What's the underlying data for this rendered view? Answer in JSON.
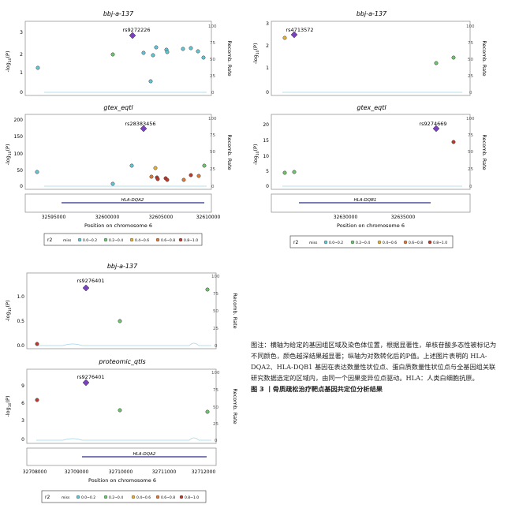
{
  "figure": {
    "colors": {
      "purple": "#7b3fbf",
      "r2_00": "#5fc8d8",
      "r2_02": "#6cc66c",
      "r2_04": "#e8b030",
      "r2_06": "#e07a34",
      "r2_08": "#c0392b",
      "recomb": "#9fd6e8",
      "gene": "#2b2b8c"
    },
    "legend": {
      "title": "r2",
      "items": [
        "miss",
        "0.0~0.2",
        "0.2~0.4",
        "0.4~0.6",
        "0.6~0.8",
        "0.8~1.0"
      ]
    },
    "recomb_label": "Recomb. Rate",
    "xaxis_label": "Position on chromosome 6",
    "panels": {
      "a": {
        "top_title": "bbj-a-137",
        "top_snp": "rs9272226",
        "top_yticks": [
          "3",
          "2",
          "1",
          "0"
        ],
        "top_rticks": [
          "100",
          "75",
          "50",
          "25",
          "0"
        ],
        "bottom_title": "gtex_eqtl",
        "bottom_snp": "rs28383456",
        "bottom_yticks": [
          "200",
          "150",
          "100",
          "50",
          "0"
        ],
        "bottom_rticks": [
          "100",
          "75",
          "50",
          "25",
          "0"
        ],
        "gene": "HLA-DQA2",
        "xticks": [
          "32595000",
          "32600000",
          "32605000",
          "32610000"
        ]
      },
      "b": {
        "top_title": "bbj-a-137",
        "top_snp": "rs4713572",
        "top_yticks": [
          "3",
          "2",
          "1",
          "0"
        ],
        "top_rticks": [
          "100",
          "75",
          "50",
          "25",
          "0"
        ],
        "bottom_title": "gtex_eqtl",
        "bottom_snp": "rs9274669",
        "bottom_yticks": [
          "20",
          "15",
          "10",
          "5",
          "0"
        ],
        "bottom_rticks": [
          "100",
          "75",
          "50",
          "25",
          "0"
        ],
        "gene": "HLA-DQB1",
        "xticks": [
          "32630000",
          "32635000"
        ]
      },
      "c": {
        "top_title": "bbj-a-137",
        "top_snp": "rs9276401",
        "top_yticks": [
          "1.0",
          "0.5",
          "0.0"
        ],
        "top_rticks": [
          "100",
          "75",
          "50",
          "25",
          "0"
        ],
        "bottom_title": "proteomic_qtls",
        "bottom_snp": "rs9276401",
        "bottom_yticks": [
          "9",
          "6",
          "3",
          "0"
        ],
        "bottom_rticks": [
          "100",
          "75",
          "50",
          "25",
          "0"
        ],
        "gene": "HLA-DQA2",
        "xticks": [
          "32708000",
          "32709000",
          "32710000",
          "32711000",
          "32712000"
        ]
      }
    }
  },
  "caption": {
    "body": "图注：横轴为给定的基因组区域及染色体位置，根据显著性，单核苷酸多态性被标记为不同颜色，颜色越深结果越显著；纵轴为对数转化后的P值。上述图片表明的 HLA-DQA2、HLA-DQB1 基因在表达数量性状位点、蛋白质数量性状位点与全基因组关联研究数据选定的区域内，由同一个因果变异位点驱动。HLA：人类白细胞抗原。",
    "title": "图 3 丨骨质疏松治疗靶点基因共定位分析结果"
  }
}
